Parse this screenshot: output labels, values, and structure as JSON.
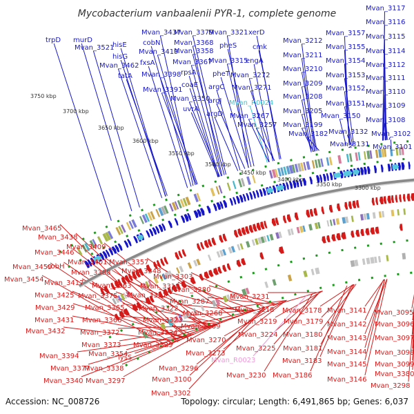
{
  "title": "Mycobacterium vanbaalenii PYR-1, complete genome",
  "accession": "Accession: NC_008726",
  "summary": "Topology: circular; Length: 6,491,865 bp; Genes: 6,037",
  "colors": {
    "forward": "#1616c8",
    "reverse": "#d51a1a",
    "backbone": "#8a8a8a",
    "tick_green": "#1a9a1a",
    "rna_cyan": "#38c7d6",
    "rna_pink": "#ee9ad8"
  },
  "position_ticks": [
    "3750 kbp",
    "3700 kbp",
    "3650 kbp",
    "3600 kbp",
    "3550 kbp",
    "3500 kbp",
    "3450 kbp",
    "3400 kbp",
    "3350 kbp",
    "3300 kbp"
  ],
  "forward_labels": [
    "trpD",
    "murD",
    "Mvan_3521",
    "hisE",
    "hisG",
    "Mvan_3462",
    "tatA",
    "Mvan_3437",
    "cobN",
    "Mvan_3419",
    "fxsA",
    "Mvan_3398",
    "Mvan_3391",
    "Mvan_3379",
    "Mvan_3368",
    "Mvan_3358",
    "Mvan_3367",
    "rpsA",
    "coaE",
    "Mvan_3350",
    "uvrA",
    "Mvan_3321",
    "Mvan_3315",
    "pheS",
    "pheT",
    "argJ",
    "argC",
    "argD",
    "xerD",
    "engA",
    "cmk",
    "Mvan_3272",
    "Mvan_3271",
    "Mvan_R0024",
    "Mvan_3267",
    "Mvan_3257",
    "Mvan_3212",
    "Mvan_3211",
    "Mvan_3210",
    "Mvan_3209",
    "Mvan_3208",
    "Mvan_3205",
    "Mvan_3199",
    "Mvan_3182",
    "Mvan_3157",
    "Mvan_3155",
    "Mvan_3154",
    "Mvan_3153",
    "Mvan_3152",
    "Mvan_3151",
    "Mvan_3150",
    "Mvan_3132",
    "Mvan_3131",
    "Mvan_3117",
    "Mvan_3116",
    "Mvan_3115",
    "Mvan_3114",
    "Mvan_3112",
    "Mvan_3111",
    "Mvan_3110",
    "Mvan_3109",
    "Mvan_3108",
    "Mvan_3102",
    "Mvan_3101"
  ],
  "reverse_labels": [
    "Mvan_3465",
    "Mvan_3438",
    "Mvan_3446",
    "Mvan_3409",
    "Mvan_3459",
    "cobH",
    "Mvan_3401",
    "Mvan_3454",
    "Mvan_3417",
    "Mvan_3388",
    "Mvan_3357",
    "Mvan_3348",
    "Mvan_3425",
    "Mvan_3363",
    "Mvan_3375",
    "Mvan_3331",
    "Mvan_3318",
    "Mvan_3303",
    "Mvan_3429",
    "Mvan_3365",
    "Mvan_3322",
    "Mvan_3280",
    "Mvan_3287",
    "Mvan_3231",
    "Mvan_3218",
    "Mvan_3431",
    "Mvan_3366",
    "Mvan_3323",
    "Mvan_3268",
    "Mvan_3219",
    "Mvan_3178",
    "Mvan_3141",
    "Mvan_3095",
    "Mvan_3432",
    "Mvan_3372",
    "Mvan_3324",
    "Mvan_3269",
    "Mvan_3224",
    "Mvan_3179",
    "Mvan_3142",
    "Mvan_3096",
    "Mvan_3373",
    "Mvan_3329",
    "Mvan_3270",
    "Mvan_3180",
    "Mvan_3143",
    "Mvan_3097",
    "Mvan_3394",
    "Mvan_3354",
    "Mvan_3225",
    "Mvan_3181",
    "Mvan_3144",
    "Mvan_3098",
    "Mvan_3377",
    "lysS",
    "Mvan_3273",
    "Mvan_R0023",
    "Mvan_3183",
    "Mvan_3145",
    "Mvan_3099",
    "Mvan_3338",
    "Mvan_3296",
    "Mvan_3230",
    "Mvan_3186",
    "Mvan_3146",
    "Mvan_3380",
    "Mvan_3340",
    "Mvan_3297",
    "Mvan_3100",
    "Mvan_3298",
    "Mvan_3302"
  ]
}
